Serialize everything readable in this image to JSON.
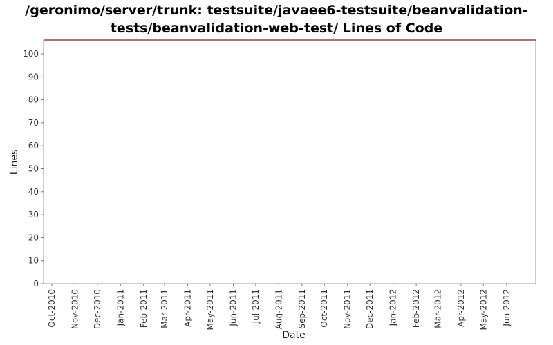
{
  "chart_data": {
    "type": "line",
    "title_lines": [
      "/geronimo/server/trunk: testsuite/javaee6-testsuite/beanvalidation-",
      "tests/beanvalidation-web-test/ Lines of Code"
    ],
    "xlabel": "Date",
    "ylabel": "Lines",
    "ylim": [
      0,
      106
    ],
    "yticks": [
      0,
      10,
      20,
      30,
      40,
      50,
      60,
      70,
      80,
      90,
      100
    ],
    "xticks": [
      "Oct-2010",
      "Nov-2010",
      "Dec-2010",
      "Jan-2011",
      "Feb-2011",
      "Mar-2011",
      "Apr-2011",
      "May-2011",
      "Jun-2011",
      "Jul-2011",
      "Aug-2011",
      "Sep-2011",
      "Oct-2011",
      "Nov-2011",
      "Dec-2011",
      "Jan-2012",
      "Feb-2012",
      "Mar-2012",
      "Apr-2012",
      "May-2012",
      "Jun-2012"
    ],
    "xlim": [
      "2010-09-20",
      "2012-07-10"
    ],
    "grid": false,
    "series": [
      {
        "color": "#8b1a1a",
        "points": [
          {
            "x": "2010-09-20",
            "y": 106
          },
          {
            "x": "2012-07-10",
            "y": 106
          }
        ]
      }
    ]
  }
}
